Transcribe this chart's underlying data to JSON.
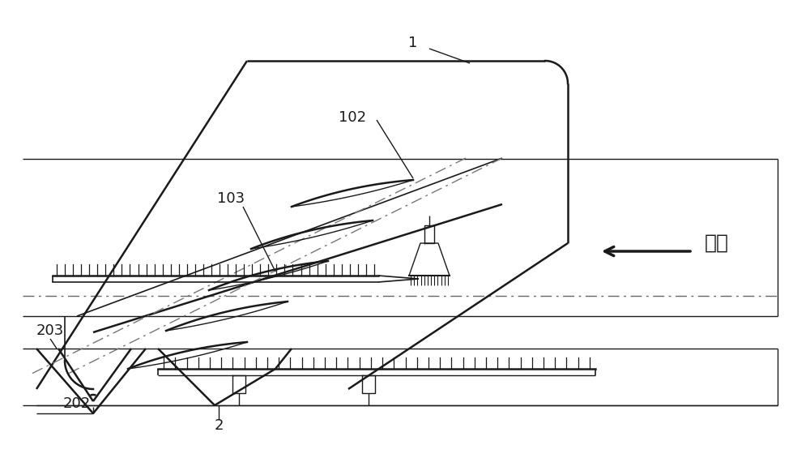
{
  "bg_color": "#ffffff",
  "line_color": "#1a1a1a",
  "flow_text": "来流",
  "figsize": [
    10.0,
    5.86
  ],
  "dpi": 100
}
